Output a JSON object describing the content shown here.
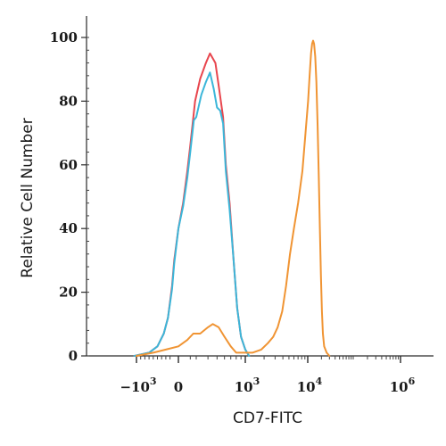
{
  "chart_data": {
    "type": "line",
    "title": "",
    "xlabel": "CD7-FITC",
    "ylabel": "Relative Cell Number",
    "ylim": [
      0,
      100
    ],
    "x_scale": "biexponential",
    "x_ticks": [
      {
        "value": -1000,
        "base": "−10",
        "exp": "3"
      },
      {
        "value": 0,
        "base": "0",
        "exp": ""
      },
      {
        "value": 1000,
        "base": "10",
        "exp": "3"
      },
      {
        "value": 10000,
        "base": "10",
        "exp": "4"
      },
      {
        "value": 1000000,
        "base": "10",
        "exp": "6"
      }
    ],
    "y_ticks": [
      0,
      20,
      40,
      60,
      80,
      100
    ],
    "grid": false,
    "legend": "none",
    "series": [
      {
        "color": "#e8464e",
        "points": [
          [
            -1050,
            0
          ],
          [
            -700,
            1
          ],
          [
            -500,
            3
          ],
          [
            -350,
            7
          ],
          [
            -250,
            12
          ],
          [
            -150,
            22
          ],
          [
            -100,
            30
          ],
          [
            0,
            40
          ],
          [
            80,
            48
          ],
          [
            150,
            58
          ],
          [
            200,
            66
          ],
          [
            280,
            80
          ],
          [
            330,
            87
          ],
          [
            380,
            92
          ],
          [
            420,
            95
          ],
          [
            480,
            92
          ],
          [
            520,
            85
          ],
          [
            580,
            75
          ],
          [
            620,
            60
          ],
          [
            680,
            48
          ],
          [
            750,
            30
          ],
          [
            820,
            15
          ],
          [
            900,
            6
          ],
          [
            1000,
            2
          ],
          [
            1150,
            0
          ]
        ]
      },
      {
        "color": "#3bb6d9",
        "points": [
          [
            -1050,
            0
          ],
          [
            -700,
            1
          ],
          [
            -500,
            3
          ],
          [
            -350,
            7
          ],
          [
            -250,
            12
          ],
          [
            -150,
            21
          ],
          [
            -100,
            29
          ],
          [
            0,
            40
          ],
          [
            80,
            47
          ],
          [
            150,
            56
          ],
          [
            200,
            64
          ],
          [
            260,
            74
          ],
          [
            300,
            75
          ],
          [
            340,
            82
          ],
          [
            380,
            86
          ],
          [
            420,
            89
          ],
          [
            460,
            84
          ],
          [
            500,
            78
          ],
          [
            540,
            77
          ],
          [
            580,
            73
          ],
          [
            620,
            58
          ],
          [
            680,
            46
          ],
          [
            750,
            30
          ],
          [
            820,
            15
          ],
          [
            900,
            6
          ],
          [
            1000,
            2
          ],
          [
            1150,
            0
          ]
        ]
      },
      {
        "color": "#f09433",
        "points": [
          [
            -1000,
            0
          ],
          [
            -600,
            1
          ],
          [
            -300,
            2
          ],
          [
            0,
            3
          ],
          [
            150,
            5
          ],
          [
            250,
            7
          ],
          [
            330,
            7
          ],
          [
            400,
            9
          ],
          [
            450,
            10
          ],
          [
            520,
            9
          ],
          [
            600,
            6
          ],
          [
            700,
            3
          ],
          [
            800,
            1
          ],
          [
            1000,
            1
          ],
          [
            1300,
            1
          ],
          [
            1800,
            2
          ],
          [
            2300,
            4
          ],
          [
            2800,
            6
          ],
          [
            3300,
            9
          ],
          [
            3900,
            14
          ],
          [
            4500,
            22
          ],
          [
            5200,
            32
          ],
          [
            6000,
            40
          ],
          [
            7000,
            48
          ],
          [
            8200,
            58
          ],
          [
            9200,
            70
          ],
          [
            10200,
            80
          ],
          [
            11000,
            88
          ],
          [
            11800,
            95
          ],
          [
            12500,
            98
          ],
          [
            13100,
            99
          ],
          [
            13800,
            98
          ],
          [
            14600,
            94
          ],
          [
            15500,
            86
          ],
          [
            16500,
            72
          ],
          [
            17500,
            56
          ],
          [
            18500,
            40
          ],
          [
            19500,
            25
          ],
          [
            20500,
            14
          ],
          [
            21500,
            7
          ],
          [
            23000,
            3
          ],
          [
            26000,
            1
          ],
          [
            30000,
            0
          ]
        ]
      }
    ]
  }
}
